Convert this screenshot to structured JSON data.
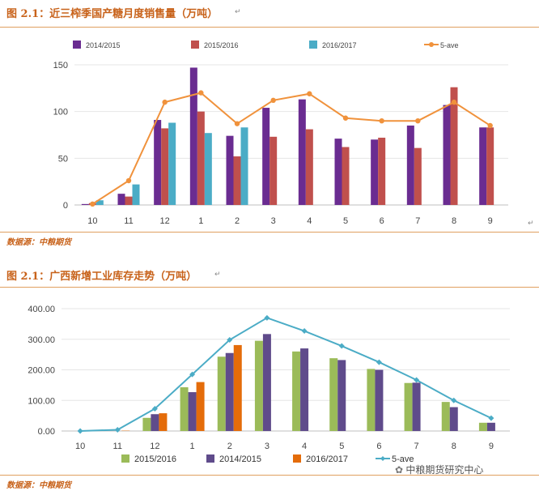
{
  "figures": [
    {
      "title": "图 2.1：近三榨季国产糖月度销售量（万吨）",
      "source": "数据源：中粮期货"
    },
    {
      "title": "图 2.1：广西新增工业库存走势（万吨）",
      "source": "数据源：中粮期货"
    }
  ],
  "watermark": "中粮期货研究中心",
  "paragraph_mark": "↵",
  "chart_data": [
    {
      "type": "bar",
      "title": "近三榨季国产糖月度销售量（万吨）",
      "categories": [
        "10",
        "11",
        "12",
        "1",
        "2",
        "3",
        "4",
        "5",
        "6",
        "7",
        "8",
        "9"
      ],
      "ylim": [
        0,
        150
      ],
      "yticks": [
        0,
        50,
        100,
        150
      ],
      "ytick_labels": [
        "0",
        "50",
        "100",
        "150"
      ],
      "legend_position": "top",
      "series": [
        {
          "name": "2014/2015",
          "type": "bar",
          "color": "#6a2c91",
          "values": [
            1,
            12,
            91,
            147,
            74,
            104,
            113,
            71,
            70,
            85,
            107,
            83
          ]
        },
        {
          "name": "2015/2016",
          "type": "bar",
          "color": "#c0504d",
          "values": [
            2,
            9,
            82,
            100,
            52,
            73,
            81,
            62,
            72,
            61,
            126,
            83
          ]
        },
        {
          "name": "2016/2017",
          "type": "bar",
          "color": "#4bacc6",
          "values": [
            5,
            22,
            88,
            77,
            83,
            null,
            null,
            null,
            null,
            null,
            null,
            null
          ]
        },
        {
          "name": "5-ave",
          "type": "line",
          "color": "#f0923c",
          "values": [
            1,
            26,
            110,
            120,
            87,
            112,
            119,
            93,
            90,
            90,
            110,
            85
          ]
        }
      ]
    },
    {
      "type": "bar",
      "title": "广西新增工业库存走势（万吨）",
      "categories": [
        "10",
        "11",
        "12",
        "1",
        "2",
        "3",
        "4",
        "5",
        "6",
        "7",
        "8",
        "9"
      ],
      "ylim": [
        0,
        400
      ],
      "yticks": [
        0,
        100,
        200,
        300,
        400
      ],
      "ytick_labels": [
        "0.00",
        "100.00",
        "200.00",
        "300.00",
        "400.00"
      ],
      "legend_position": "bottom",
      "series": [
        {
          "name": "2015/2016",
          "type": "bar",
          "color": "#9bbb59",
          "values": [
            0,
            0,
            43,
            143,
            243,
            295,
            260,
            238,
            203,
            157,
            95,
            27
          ]
        },
        {
          "name": "2014/2015",
          "type": "bar",
          "color": "#5f4b8b",
          "values": [
            0,
            0,
            55,
            127,
            255,
            317,
            270,
            232,
            200,
            158,
            78,
            27
          ]
        },
        {
          "name": "2016/2017",
          "type": "bar",
          "color": "#e46c0a",
          "values": [
            0,
            1,
            58,
            160,
            281,
            null,
            null,
            null,
            null,
            null,
            null,
            null
          ]
        },
        {
          "name": "5-ave",
          "type": "line",
          "color": "#4bacc6",
          "values": [
            0,
            4,
            73,
            185,
            298,
            370,
            327,
            278,
            225,
            167,
            100,
            42
          ]
        }
      ]
    }
  ]
}
